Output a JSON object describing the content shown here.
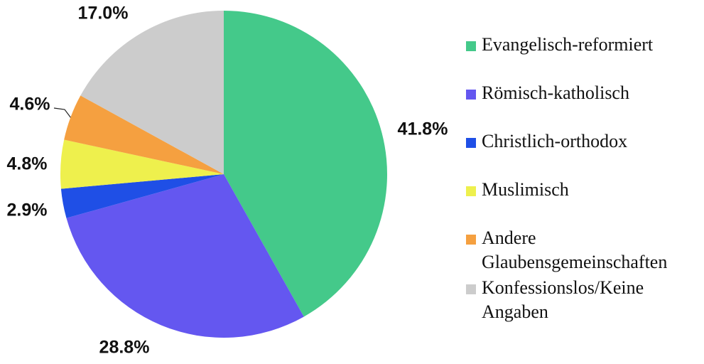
{
  "chart_data": {
    "type": "pie",
    "categories": [
      "Evangelisch-reformiert",
      "Römisch-katholisch",
      "Christlich-orthodox",
      "Muslimisch",
      "Andere Glaubensgemeinschaften",
      "Konfessionslos/Keine Angaben"
    ],
    "values": [
      41.8,
      28.8,
      2.9,
      4.8,
      4.6,
      17.0
    ],
    "value_labels": [
      "41.8%",
      "28.8%",
      "2.9%",
      "4.8%",
      "4.6%",
      "17.0%"
    ],
    "colors": [
      "#44c98a",
      "#6457f0",
      "#1f4fe6",
      "#eef04d",
      "#f5a040",
      "#cccccc"
    ],
    "legend": "right"
  }
}
